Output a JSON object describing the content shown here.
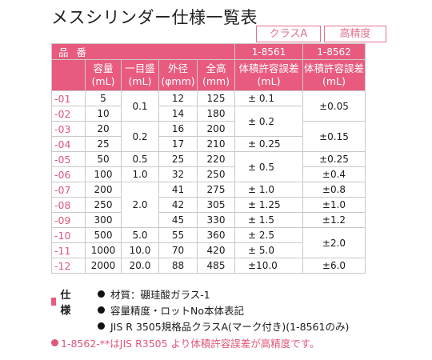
{
  "title": "メスシリンダー仕様一覧表",
  "classes": [
    {
      "label": "クラスA",
      "code": "1-8561"
    },
    {
      "label": "高精度",
      "code": "1-8562"
    }
  ],
  "table": {
    "hinban_label": "品番",
    "headers": {
      "capacity": "容量(mL)",
      "division": "一目盛(mL)",
      "outer_dia": "外径(φmm)",
      "height": "全高(mm)",
      "tol_a": "体積許容誤差(mL)",
      "tol_b": "体積許容誤差(mL)"
    },
    "rows": [
      {
        "code": "-01",
        "capacity": "5",
        "outer": "12",
        "height": "125"
      },
      {
        "code": "-02",
        "capacity": "10",
        "outer": "14",
        "height": "180"
      },
      {
        "code": "-03",
        "capacity": "20",
        "outer": "16",
        "height": "200"
      },
      {
        "code": "-04",
        "capacity": "25",
        "outer": "17",
        "height": "210"
      },
      {
        "code": "-05",
        "capacity": "50",
        "outer": "25",
        "height": "220"
      },
      {
        "code": "-06",
        "capacity": "100",
        "outer": "32",
        "height": "250"
      },
      {
        "code": "-07",
        "capacity": "200",
        "outer": "41",
        "height": "275"
      },
      {
        "code": "-08",
        "capacity": "250",
        "outer": "42",
        "height": "305"
      },
      {
        "code": "-09",
        "capacity": "300",
        "outer": "45",
        "height": "330"
      },
      {
        "code": "-10",
        "capacity": "500",
        "outer": "55",
        "height": "360"
      },
      {
        "code": "-11",
        "capacity": "1000",
        "outer": "70",
        "height": "420"
      },
      {
        "code": "-12",
        "capacity": "2000",
        "outer": "88",
        "height": "485"
      }
    ],
    "division_groups": [
      {
        "text": "0.1",
        "rows": 2
      },
      {
        "text": "0.2",
        "rows": 2
      },
      {
        "text": "0.5",
        "rows": 1
      },
      {
        "text": "1.0",
        "rows": 1
      },
      {
        "text": "2.0",
        "rows": 3
      },
      {
        "text": "5.0",
        "rows": 1
      },
      {
        "text": "10.0",
        "rows": 1
      },
      {
        "text": "20.0",
        "rows": 1
      }
    ],
    "tol_a_groups": [
      {
        "text": "± 0.1",
        "rows": 1
      },
      {
        "text": "± 0.2",
        "rows": 2
      },
      {
        "text": "± 0.25",
        "rows": 1
      },
      {
        "text": "± 0.5",
        "rows": 2
      },
      {
        "text": "± 1.0",
        "rows": 1
      },
      {
        "text": "± 1.25",
        "rows": 1
      },
      {
        "text": "± 1.5",
        "rows": 1
      },
      {
        "text": "± 2.5",
        "rows": 1
      },
      {
        "text": "± 5.0",
        "rows": 1
      },
      {
        "text": "±10.0",
        "rows": 1
      }
    ],
    "tol_b_groups": [
      {
        "text": "±0.05",
        "rows": 2
      },
      {
        "text": "±0.15",
        "rows": 2
      },
      {
        "text": "±0.25",
        "rows": 1
      },
      {
        "text": "±0.4",
        "rows": 1
      },
      {
        "text": "±0.8",
        "rows": 1
      },
      {
        "text": "±1.0",
        "rows": 1
      },
      {
        "text": "±1.2",
        "rows": 1
      },
      {
        "text": "±2.0",
        "rows": 2
      },
      {
        "text": "±6.0",
        "rows": 1
      }
    ]
  },
  "notes": {
    "heading": "仕様",
    "lines": [
      "材質：硼珪酸ガラス-1",
      "容量精度・ロットNo本体表記",
      "JIS R 3505規格品クラスA(マーク付き)(1-8561のみ)"
    ],
    "highlight": "1-8562-**はJIS R3505 より体積許容誤差が高精度です。"
  },
  "colors": {
    "accent": "#e85b7f",
    "code_text": "#e0567a"
  }
}
